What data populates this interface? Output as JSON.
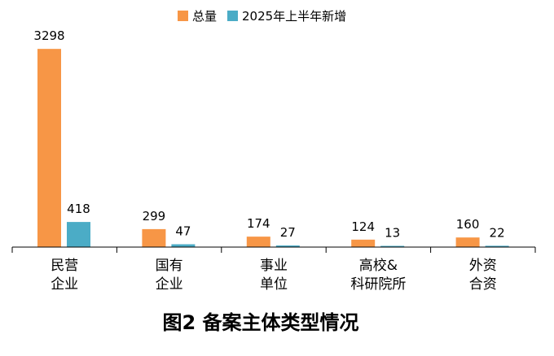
{
  "colors": {
    "total": "#F79646",
    "new_h1": "#4BACC6",
    "axis": "#000000"
  },
  "caption": "图2 备案主体类型情况",
  "chart_data": {
    "type": "bar",
    "title": "",
    "xlabel": "",
    "ylabel": "",
    "grid": false,
    "legend_position": "top",
    "ylim": [
      0,
      3300
    ],
    "categories": [
      [
        "民营",
        "企业"
      ],
      [
        "国有",
        "企业"
      ],
      [
        "事业",
        "单位"
      ],
      [
        "高校&",
        "科研院所"
      ],
      [
        "外资",
        "合资"
      ]
    ],
    "series": [
      {
        "name": "总量",
        "color": "#F79646",
        "values": [
          3298,
          299,
          174,
          124,
          160
        ]
      },
      {
        "name": "2025年上半年新增",
        "color": "#4BACC6",
        "values": [
          418,
          47,
          27,
          13,
          22
        ]
      }
    ]
  }
}
